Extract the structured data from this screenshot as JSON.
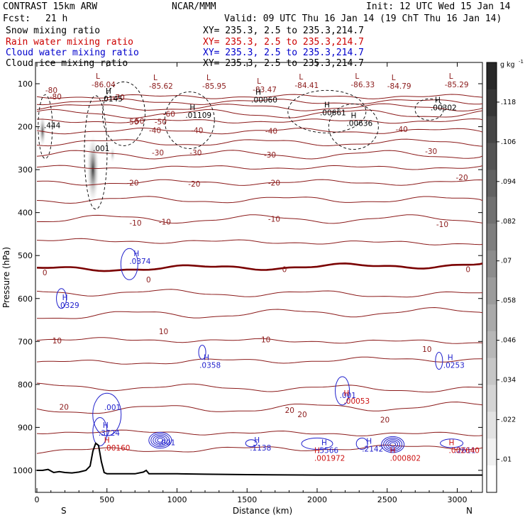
{
  "header": {
    "left1": "CONTRAST 15km ARW",
    "center1": "NCAR/MMM",
    "right1": "Init: 12 UTC Wed 15 Jan 14",
    "left2": "Fcst:",
    "fcst_value": "21 h",
    "right2": "Valid: 09 UTC Thu 16 Jan 14 (19 ChT Thu 16 Jan 14)"
  },
  "fields": [
    {
      "label": "Snow mixing ratio",
      "xy": "XY= 235.3,  2.5 to 235.3,214.7",
      "color": "#000000"
    },
    {
      "label": "Rain water mixing ratio",
      "xy": "XY= 235.3,  2.5 to 235.3,214.7",
      "color": "#cc0000"
    },
    {
      "label": "Cloud water mixing ratio",
      "xy": "XY= 235.3,  2.5 to 235.3,214.7",
      "color": "#0000cc"
    },
    {
      "label": "Cloud ice mixing ratio",
      "xy": "XY= 235.3,  2.5 to 235.3,214.7",
      "color": "#000000"
    }
  ],
  "colors": {
    "temp": "#8b1a1a",
    "freezing": "#7a0000",
    "cloud_water": "#1f1fcc",
    "rain": "#cc1111",
    "snow": "#000000",
    "terrain": "#000000"
  },
  "chart_data": {
    "type": "cross-section",
    "xlabel": "Distance (km)",
    "ylabel": "Pressure (hPa)",
    "xlim": [
      0,
      3200
    ],
    "ylim": [
      1050,
      50
    ],
    "x_ticks": [
      "0",
      "500",
      "1000",
      "1500",
      "2000",
      "2500",
      "3000"
    ],
    "x_tick_values": [
      0,
      500,
      1000,
      1500,
      2000,
      2500,
      3000
    ],
    "y_ticks": [
      "100",
      "200",
      "300",
      "400",
      "500",
      "600",
      "700",
      "800",
      "900",
      "1000"
    ],
    "y_tick_values": [
      100,
      200,
      300,
      400,
      500,
      600,
      700,
      800,
      900,
      1000
    ],
    "x_end_labels": {
      "left": "S",
      "right": "N"
    },
    "colorbar": {
      "units": "g kg",
      "units_exp": "-1",
      "labels": [
        ".118",
        ".106",
        ".094",
        ".082",
        ".07",
        ".058",
        ".046",
        ".034",
        ".022",
        ".01"
      ],
      "values": [
        0.118,
        0.106,
        0.094,
        0.082,
        0.07,
        0.058,
        0.046,
        0.034,
        0.022,
        0.01
      ]
    },
    "temperature_levels": [
      {
        "p": 130,
        "label": "-80",
        "x": 90,
        "freezing": false
      },
      {
        "p": 142,
        "label": "",
        "x": null,
        "freezing": false
      },
      {
        "p": 155,
        "label": "",
        "x": null,
        "freezing": false
      },
      {
        "p": 170,
        "label": "-60",
        "x": 900,
        "freezing": false
      },
      {
        "p": 187,
        "label": "-50",
        "x": 680,
        "freezing": false
      },
      {
        "p": 210,
        "label": "-40",
        "x": 1630,
        "freezing": false
      },
      {
        "p": 237,
        "label": "",
        "x": null,
        "freezing": false
      },
      {
        "p": 265,
        "label": "-30",
        "x": 1620,
        "freezing": false
      },
      {
        "p": 295,
        "label": "",
        "x": null,
        "freezing": false
      },
      {
        "p": 330,
        "label": "-20",
        "x": 1650,
        "freezing": false
      },
      {
        "p": 370,
        "label": "",
        "x": null,
        "freezing": false
      },
      {
        "p": 415,
        "label": "-10",
        "x": 1650,
        "freezing": false
      },
      {
        "p": 465,
        "label": "",
        "x": null,
        "freezing": false
      },
      {
        "p": 532,
        "label": "0",
        "x": 1750,
        "freezing": true
      },
      {
        "p": 585,
        "label": "",
        "x": null,
        "freezing": false
      },
      {
        "p": 640,
        "label": "",
        "x": null,
        "freezing": false
      },
      {
        "p": 695,
        "label": "10",
        "x": 1600,
        "freezing": false
      },
      {
        "p": 750,
        "label": "",
        "x": null,
        "freezing": false
      },
      {
        "p": 805,
        "label": "",
        "x": null,
        "freezing": false
      },
      {
        "p": 860,
        "label": "20",
        "x": 1770,
        "freezing": false
      },
      {
        "p": 910,
        "label": "",
        "x": null,
        "freezing": false
      },
      {
        "p": 955,
        "label": "",
        "x": null,
        "freezing": false
      }
    ],
    "temperature_side_labels": [
      {
        "text": "-80",
        "x": 60,
        "p": 115
      },
      {
        "text": "-70",
        "x": 540,
        "p": 131
      },
      {
        "text": "-50",
        "x": 640,
        "p": 188
      },
      {
        "text": "-50",
        "x": 840,
        "p": 188
      },
      {
        "text": "-40",
        "x": 800,
        "p": 208
      },
      {
        "text": "-40",
        "x": 1100,
        "p": 208
      },
      {
        "text": "-40",
        "x": 2560,
        "p": 206
      },
      {
        "text": "-30",
        "x": 820,
        "p": 260
      },
      {
        "text": "-30",
        "x": 1090,
        "p": 260
      },
      {
        "text": "-30",
        "x": 2770,
        "p": 257
      },
      {
        "text": "-20",
        "x": 640,
        "p": 330
      },
      {
        "text": "-20",
        "x": 1080,
        "p": 333
      },
      {
        "text": "-20",
        "x": 2990,
        "p": 318
      },
      {
        "text": "-10",
        "x": 660,
        "p": 424
      },
      {
        "text": "-10",
        "x": 870,
        "p": 421
      },
      {
        "text": "-10",
        "x": 2850,
        "p": 427
      },
      {
        "text": "0",
        "x": 40,
        "p": 539
      },
      {
        "text": "0",
        "x": 780,
        "p": 556
      },
      {
        "text": "0",
        "x": 3060,
        "p": 532
      },
      {
        "text": "10",
        "x": 110,
        "p": 698
      },
      {
        "text": "10",
        "x": 870,
        "p": 676
      },
      {
        "text": "10",
        "x": 2750,
        "p": 718
      },
      {
        "text": "20",
        "x": 160,
        "p": 852
      },
      {
        "text": "20",
        "x": 1860,
        "p": 870
      },
      {
        "text": "20",
        "x": 2450,
        "p": 882
      }
    ],
    "tropopause_lows": [
      {
        "label": "L",
        "value": "-86.04",
        "x": 390,
        "p": 97
      },
      {
        "label": "L",
        "value": "-85.62",
        "x": 800,
        "p": 100
      },
      {
        "label": "L",
        "value": "-85.95",
        "x": 1180,
        "p": 100
      },
      {
        "label": "L",
        "value": "-83.47",
        "x": 1540,
        "p": 108
      },
      {
        "label": "L",
        "value": "-84.41",
        "x": 1840,
        "p": 98
      },
      {
        "label": "L",
        "value": "-86.33",
        "x": 2240,
        "p": 97
      },
      {
        "label": "L",
        "value": "-84.79",
        "x": 2500,
        "p": 100
      },
      {
        "label": "L",
        "value": "-85.29",
        "x": 2910,
        "p": 97
      }
    ],
    "ice_maxima": [
      {
        "label": "H",
        "value": ".0145",
        "x": 460,
        "p": 130
      },
      {
        "label": "H",
        "value": ".01109",
        "x": 1060,
        "p": 168
      },
      {
        "label": "H",
        "value": ".00060",
        "x": 1530,
        "p": 132
      },
      {
        "label": "H",
        "value": ".00661",
        "x": 2020,
        "p": 162
      },
      {
        "label": "H",
        "value": ".00636",
        "x": 2210,
        "p": 187
      },
      {
        "label": "H",
        "value": ".00302",
        "x": 2810,
        "p": 150
      },
      {
        "label": "",
        "value": ".444",
        "x": 50,
        "p": 192
      },
      {
        "label": "",
        "value": ".001",
        "x": 400,
        "p": 245
      }
    ],
    "cloud_water_maxima": [
      {
        "label": "H",
        "value": ".0374",
        "x": 660,
        "p": 508
      },
      {
        "label": "H",
        "value": ".0329",
        "x": 150,
        "p": 610
      },
      {
        "label": "H",
        "value": ".0358",
        "x": 1160,
        "p": 750
      },
      {
        "label": "H",
        "value": ".0253",
        "x": 2900,
        "p": 750
      },
      {
        "label": "H",
        "value": ".3724",
        "x": 440,
        "p": 908
      },
      {
        "label": "H",
        "value": ".1138",
        "x": 1520,
        "p": 942
      },
      {
        "label": "H",
        "value": ".5566",
        "x": 2000,
        "p": 948
      },
      {
        "label": "H",
        "value": ".2142",
        "x": 2320,
        "p": 945
      },
      {
        "label": "",
        "value": ".001",
        "x": 870,
        "p": 930
      },
      {
        "label": "",
        "value": ".001",
        "x": 480,
        "p": 848
      },
      {
        "label": "",
        "value": ".001",
        "x": 2160,
        "p": 820
      },
      {
        "label": "",
        "value": ".2611",
        "x": 2980,
        "p": 948
      }
    ],
    "rain_maxima": [
      {
        "label": "H",
        "value": ".00160",
        "x": 520,
        "p": 942
      },
      {
        "label": "H",
        "value": ".001972",
        "x": 2020,
        "p": 966
      },
      {
        "label": "H",
        "value": ".00053",
        "x": 2230,
        "p": 833
      },
      {
        "label": "H",
        "value": ".000802",
        "x": 2560,
        "p": 966
      },
      {
        "label": "H",
        "value": ".002640",
        "x": 2980,
        "p": 948
      }
    ],
    "terrain": {
      "x": [
        0,
        40,
        80,
        120,
        160,
        200,
        250,
        300,
        350,
        380,
        400,
        420,
        440,
        460,
        480,
        500,
        550,
        600,
        700,
        760,
        780,
        800,
        900,
        1000,
        1200,
        1500,
        2000,
        2500,
        3000,
        3200
      ],
      "p": [
        1000,
        1000,
        998,
        1005,
        1003,
        1005,
        1006,
        1004,
        1000,
        990,
        955,
        937,
        942,
        980,
        1005,
        1008,
        1008,
        1008,
        1008,
        1004,
        1000,
        1008,
        1008,
        1008,
        1009,
        1010,
        1011,
        1011,
        1011,
        1011
      ]
    }
  }
}
